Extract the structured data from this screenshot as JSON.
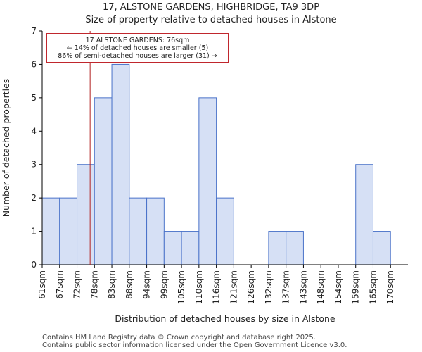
{
  "chart_data": {
    "type": "bar",
    "title": "17, ALSTONE GARDENS, HIGHBRIDGE, TA9 3DP",
    "subtitle": "Size of property relative to detached houses in Alstone",
    "xlabel": "Distribution of detached houses by size in Alstone",
    "ylabel": "Number of detached properties",
    "categories": [
      "61sqm",
      "67sqm",
      "72sqm",
      "78sqm",
      "83sqm",
      "88sqm",
      "94sqm",
      "99sqm",
      "105sqm",
      "110sqm",
      "116sqm",
      "121sqm",
      "126sqm",
      "132sqm",
      "137sqm",
      "143sqm",
      "148sqm",
      "154sqm",
      "159sqm",
      "165sqm",
      "170sqm"
    ],
    "values": [
      2,
      2,
      3,
      5,
      6,
      2,
      2,
      1,
      1,
      5,
      2,
      0,
      0,
      1,
      1,
      0,
      0,
      0,
      3,
      1,
      0
    ],
    "ylim": [
      0,
      7
    ],
    "yticks": [
      0,
      1,
      2,
      3,
      4,
      5,
      6,
      7
    ],
    "grid": false,
    "bar_color": "#d6e0f5",
    "bar_edge_color": "#4a72c9",
    "marker": {
      "value_sqm": 76,
      "color": "#b22222",
      "annotation_lines": [
        "17 ALSTONE GARDENS: 76sqm",
        "← 14% of detached houses are smaller (5)",
        "86% of semi-detached houses are larger (31) →"
      ]
    }
  },
  "footer": {
    "line1": "Contains HM Land Registry data © Crown copyright and database right 2025.",
    "line2": "Contains public sector information licensed under the Open Government Licence v3.0."
  }
}
